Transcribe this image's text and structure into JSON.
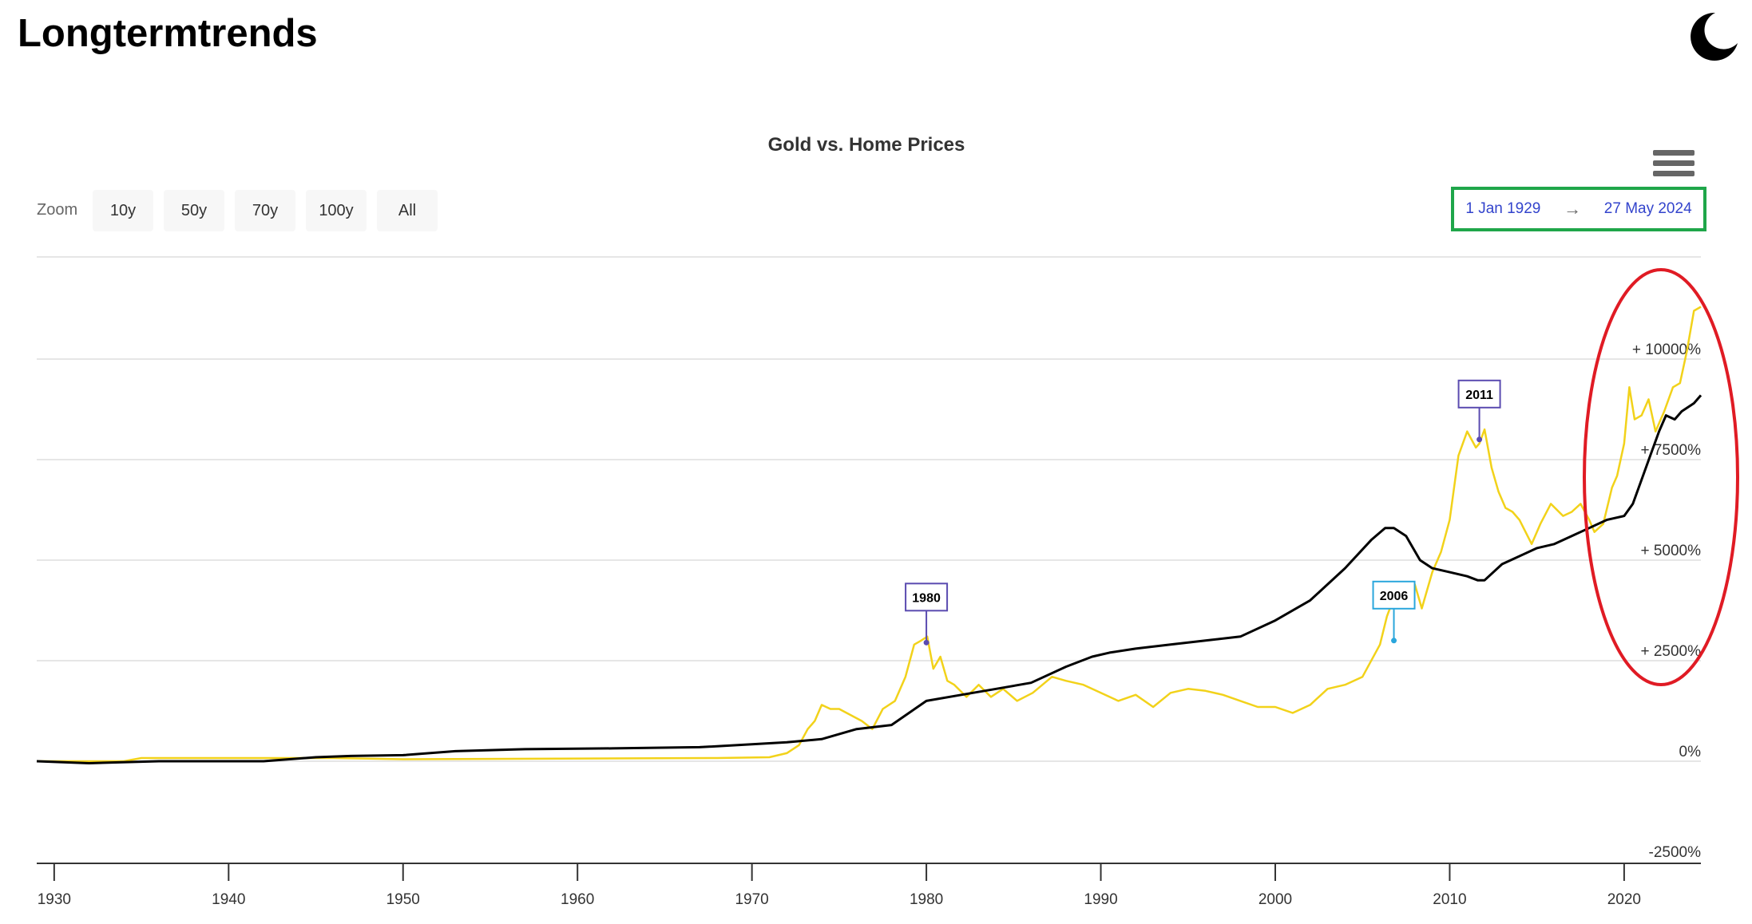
{
  "site": {
    "title": "Longtermtrends"
  },
  "icons": {
    "theme_toggle": "moon-icon",
    "chart_menu": "hamburger-menu-icon"
  },
  "colors": {
    "gold": "#f2d21a",
    "home": "#000000",
    "highlight_box": "#1fa64a",
    "highlight_ellipse": "#e01b24",
    "range_text": "#3344cc"
  },
  "zoom": {
    "label": "Zoom",
    "buttons": [
      "10y",
      "50y",
      "70y",
      "100y",
      "All"
    ]
  },
  "range": {
    "from": "1 Jan 1929",
    "arrow": "→",
    "to": "27 May 2024"
  },
  "chart_data": {
    "type": "line",
    "title": "Gold vs. Home Prices",
    "xlabel": "",
    "ylabel": "",
    "x_ticks": [
      1930,
      1940,
      1950,
      1960,
      1970,
      1980,
      1990,
      2000,
      2010,
      2020
    ],
    "x_range": [
      1929,
      2024.4
    ],
    "y_ticks": [
      -2500,
      0,
      2500,
      5000,
      7500,
      10000
    ],
    "y_tick_labels": [
      "-2500%",
      "0%",
      "+ 2500%",
      "+ 5000%",
      "+ 7500%",
      "+ 10000%"
    ],
    "ylim": [
      -2500,
      12500
    ],
    "grid": true,
    "series": [
      {
        "key": "gold",
        "x": [
          1929,
          1934,
          1935,
          1946,
          1950,
          1968,
          1971,
          1972,
          1972.7,
          1973.2,
          1973.6,
          1974,
          1974.5,
          1975,
          1976.3,
          1976.9,
          1977.5,
          1978.2,
          1978.8,
          1979.3,
          1979.7,
          1980.05,
          1980.4,
          1980.8,
          1981.2,
          1981.6,
          1982.3,
          1983,
          1983.7,
          1984.4,
          1985.2,
          1986.1,
          1987.2,
          1988,
          1989,
          1990,
          1991,
          1992,
          1993,
          1994,
          1995,
          1996,
          1997,
          1998,
          1999,
          2000,
          2001,
          2002,
          2003,
          2004,
          2005,
          2006,
          2006.4,
          2007,
          2007.5,
          2008,
          2008.4,
          2009,
          2009.5,
          2010,
          2010.5,
          2011,
          2011.5,
          2011.7,
          2012,
          2012.4,
          2012.8,
          2013.2,
          2013.6,
          2014,
          2014.7,
          2015.2,
          2015.8,
          2016.5,
          2017,
          2017.5,
          2018,
          2018.3,
          2018.8,
          2019.3,
          2019.6,
          2020,
          2020.3,
          2020.6,
          2021,
          2021.4,
          2021.8,
          2022.3,
          2022.8,
          2023.2,
          2023.6,
          2024.0,
          2024.4
        ],
        "y": [
          0,
          0,
          80,
          80,
          50,
          80,
          100,
          200,
          400,
          800,
          1000,
          1400,
          1300,
          1300,
          1000,
          800,
          1300,
          1500,
          2100,
          2900,
          3000,
          3100,
          2300,
          2600,
          2000,
          1900,
          1600,
          1900,
          1600,
          1800,
          1500,
          1700,
          2100,
          2000,
          1900,
          1700,
          1500,
          1650,
          1350,
          1700,
          1800,
          1750,
          1650,
          1500,
          1350,
          1350,
          1200,
          1400,
          1800,
          1900,
          2100,
          2900,
          3600,
          4300,
          4450,
          4400,
          3800,
          4700,
          5200,
          6000,
          7600,
          8200,
          7800,
          7900,
          8250,
          7300,
          6700,
          6300,
          6200,
          6000,
          5400,
          5900,
          6400,
          6100,
          6200,
          6400,
          6000,
          5700,
          5900,
          6800,
          7100,
          7900,
          9300,
          8500,
          8600,
          9000,
          8200,
          8700,
          9300,
          9400,
          10200,
          11200,
          11300
        ]
      },
      {
        "key": "home",
        "x": [
          1929,
          1932,
          1936,
          1942,
          1945,
          1947,
          1950,
          1953,
          1957,
          1962,
          1967,
          1970,
          1972,
          1974,
          1976,
          1978,
          1980,
          1982,
          1984,
          1986,
          1988,
          1989.5,
          1990.5,
          1992,
          1994,
          1996,
          1998,
          2000,
          2002,
          2004,
          2005.5,
          2006.3,
          2006.8,
          2007.5,
          2008.3,
          2009,
          2010,
          2011,
          2011.6,
          2012,
          2013,
          2013.5,
          2014,
          2015,
          2016,
          2017,
          2018,
          2019,
          2020,
          2020.5,
          2021,
          2021.5,
          2022,
          2022.4,
          2022.9,
          2023.3,
          2024.0,
          2024.4
        ],
        "y": [
          0,
          -50,
          0,
          0,
          100,
          130,
          150,
          250,
          300,
          320,
          350,
          420,
          470,
          550,
          800,
          900,
          1500,
          1650,
          1800,
          1950,
          2350,
          2600,
          2700,
          2800,
          2900,
          3000,
          3100,
          3500,
          4000,
          4800,
          5500,
          5800,
          5800,
          5600,
          5000,
          4800,
          4700,
          4600,
          4500,
          4500,
          4900,
          5000,
          5100,
          5300,
          5400,
          5600,
          5800,
          6000,
          6100,
          6400,
          7000,
          7600,
          8200,
          8600,
          8500,
          8700,
          8900,
          9100
        ]
      }
    ],
    "annotations": [
      {
        "label": "1980",
        "x": 1980.0,
        "y": 2950
      },
      {
        "label": "2006",
        "x": 2006.8,
        "y": 3000
      },
      {
        "label": "2011",
        "x": 2011.7,
        "y": 8000
      }
    ]
  }
}
